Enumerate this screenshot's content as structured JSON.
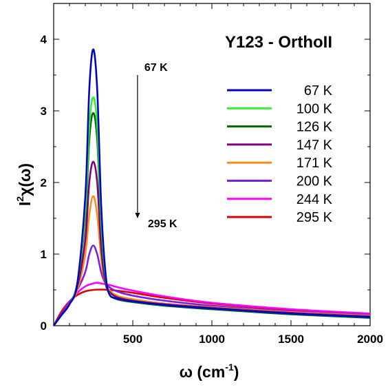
{
  "chart_data": {
    "type": "line",
    "title": "Y123 - OrthoII",
    "xlabel_main": "ω (cm",
    "xlabel_sup": "-1",
    "xlabel_close": ")",
    "ylabel_main": "I",
    "ylabel_sup": "2",
    "ylabel_rest": "χ(ω)",
    "xlim": [
      0,
      2000
    ],
    "ylim": [
      0,
      4.5
    ],
    "xticks": [
      500,
      1000,
      1500,
      2000
    ],
    "yticks": [
      0,
      1,
      2,
      3,
      4
    ],
    "x_tick_labels": [
      "500",
      "1000",
      "1500",
      "2000"
    ],
    "y_tick_labels": [
      "0",
      "1",
      "2",
      "3",
      "4"
    ],
    "annotations": {
      "arrow_top": "67 K",
      "arrow_bottom": "295 K",
      "arrow_x": 530,
      "arrow_y_start": 3.5,
      "arrow_y_end": 1.5
    },
    "legend_placement": "right",
    "grid": false,
    "series": [
      {
        "name": " 67 K",
        "color": "#0000cc",
        "x": [
          0,
          50,
          100,
          150,
          200,
          225,
          250,
          275,
          300,
          325,
          350,
          400,
          500,
          700,
          1000,
          1500,
          2000
        ],
        "y": [
          0,
          0.15,
          0.3,
          0.6,
          1.8,
          3.3,
          3.86,
          3.3,
          1.7,
          0.8,
          0.45,
          0.38,
          0.34,
          0.29,
          0.24,
          0.17,
          0.12
        ]
      },
      {
        "name": "100 K",
        "color": "#33ee33",
        "x": [
          0,
          50,
          100,
          150,
          200,
          225,
          250,
          275,
          300,
          325,
          350,
          400,
          500,
          700,
          1000,
          1500,
          2000
        ],
        "y": [
          0,
          0.15,
          0.3,
          0.6,
          1.6,
          2.8,
          3.19,
          2.8,
          1.5,
          0.75,
          0.46,
          0.38,
          0.34,
          0.29,
          0.24,
          0.17,
          0.12
        ]
      },
      {
        "name": "126 K",
        "color": "#006600",
        "x": [
          0,
          50,
          100,
          150,
          200,
          225,
          250,
          275,
          300,
          325,
          350,
          400,
          500,
          700,
          1000,
          1500,
          2000
        ],
        "y": [
          0,
          0.15,
          0.3,
          0.6,
          1.5,
          2.6,
          2.97,
          2.6,
          1.4,
          0.7,
          0.45,
          0.37,
          0.33,
          0.28,
          0.23,
          0.16,
          0.11
        ]
      },
      {
        "name": "147 K",
        "color": "#800080",
        "x": [
          0,
          50,
          100,
          150,
          200,
          225,
          250,
          275,
          300,
          325,
          350,
          400,
          500,
          700,
          1000,
          1500,
          2000
        ],
        "y": [
          0,
          0.16,
          0.3,
          0.55,
          1.2,
          2.0,
          2.29,
          2.0,
          1.1,
          0.62,
          0.48,
          0.4,
          0.35,
          0.3,
          0.25,
          0.18,
          0.13
        ]
      },
      {
        "name": "171 K",
        "color": "#ff8c1a",
        "x": [
          0,
          50,
          100,
          150,
          200,
          225,
          250,
          275,
          300,
          325,
          350,
          400,
          500,
          700,
          1000,
          1500,
          2000
        ],
        "y": [
          0,
          0.16,
          0.3,
          0.5,
          1.0,
          1.55,
          1.81,
          1.55,
          0.95,
          0.6,
          0.5,
          0.42,
          0.37,
          0.31,
          0.26,
          0.19,
          0.14
        ]
      },
      {
        "name": "200 K",
        "color": "#7a1fe0",
        "x": [
          0,
          50,
          100,
          150,
          200,
          225,
          250,
          275,
          300,
          325,
          350,
          400,
          500,
          700,
          1000,
          1500,
          2000
        ],
        "y": [
          0,
          0.17,
          0.32,
          0.5,
          0.75,
          1.0,
          1.12,
          1.0,
          0.75,
          0.6,
          0.54,
          0.48,
          0.42,
          0.35,
          0.28,
          0.2,
          0.15
        ]
      },
      {
        "name": "244 K",
        "color": "#ff00ff",
        "x": [
          0,
          50,
          100,
          150,
          200,
          250,
          275,
          300,
          350,
          400,
          500,
          700,
          1000,
          1500,
          2000
        ],
        "y": [
          0,
          0.17,
          0.33,
          0.46,
          0.55,
          0.59,
          0.6,
          0.59,
          0.57,
          0.54,
          0.49,
          0.41,
          0.32,
          0.23,
          0.17
        ]
      },
      {
        "name": "295 K",
        "color": "#dd0000",
        "x": [
          0,
          50,
          100,
          150,
          200,
          250,
          300,
          350,
          400,
          500,
          700,
          1000,
          1500,
          2000
        ],
        "y": [
          0,
          0.2,
          0.34,
          0.43,
          0.48,
          0.5,
          0.505,
          0.5,
          0.49,
          0.46,
          0.39,
          0.31,
          0.22,
          0.16
        ]
      }
    ]
  }
}
